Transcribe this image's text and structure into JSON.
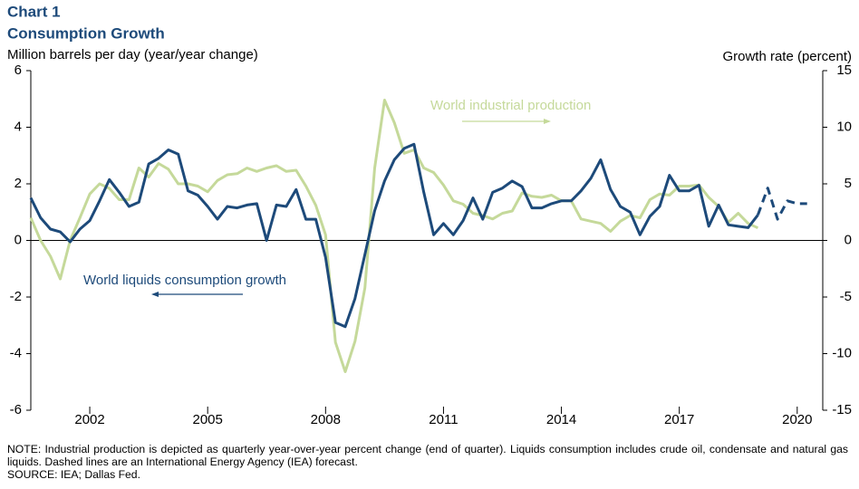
{
  "chart_data": {
    "type": "line",
    "title": "Chart 1",
    "subtitle": "Consumption Growth",
    "y_label": "Million barrels per day (year/year change)",
    "y2_label": "Growth rate (percent)",
    "note": "NOTE: Industrial production is depicted as quarterly year-over-year percent change (end of quarter). Liquids consumption includes crude oil, condensate and natural gas liquids. Dashed lines are an International Energy Agency (IEA) forecast.",
    "source": "SOURCE: IEA; Dallas Fed.",
    "x": [
      2000.5,
      2000.75,
      2001,
      2001.25,
      2001.5,
      2001.75,
      2002,
      2002.25,
      2002.5,
      2002.75,
      2003,
      2003.25,
      2003.5,
      2003.75,
      2004,
      2004.25,
      2004.5,
      2004.75,
      2005,
      2005.25,
      2005.5,
      2005.75,
      2006,
      2006.25,
      2006.5,
      2006.75,
      2007,
      2007.25,
      2007.5,
      2007.75,
      2008,
      2008.25,
      2008.5,
      2008.75,
      2009,
      2009.25,
      2009.5,
      2009.75,
      2010,
      2010.25,
      2010.5,
      2010.75,
      2011,
      2011.25,
      2011.5,
      2011.75,
      2012,
      2012.25,
      2012.5,
      2012.75,
      2013,
      2013.25,
      2013.5,
      2013.75,
      2014,
      2014.25,
      2014.5,
      2014.75,
      2015,
      2015.25,
      2015.5,
      2015.75,
      2016,
      2016.25,
      2016.5,
      2016.75,
      2017,
      2017.25,
      2017.5,
      2017.75,
      2018,
      2018.25,
      2018.5,
      2018.75,
      2019,
      2019.25,
      2019.5,
      2019.75,
      2020,
      2020.25,
      2020.5
    ],
    "series": [
      {
        "name": "World liquids consumption growth",
        "color": "#1d4a7a",
        "forecast_from": 2019,
        "values": [
          1.5,
          0.8,
          0.4,
          0.3,
          -0.05,
          0.4,
          0.7,
          1.4,
          2.15,
          1.7,
          1.2,
          1.35,
          2.7,
          2.9,
          3.2,
          3.05,
          1.75,
          1.6,
          1.2,
          0.75,
          1.2,
          1.15,
          1.25,
          1.3,
          0,
          1.25,
          1.2,
          1.8,
          0.75,
          0.75,
          -0.6,
          -2.9,
          -3.05,
          -2.05,
          -0.5,
          1.05,
          2.1,
          2.85,
          3.25,
          3.4,
          1.7,
          0.2,
          0.6,
          0.2,
          0.7,
          1.5,
          0.75,
          1.7,
          1.85,
          2.1,
          1.9,
          1.15,
          1.15,
          1.3,
          1.4,
          1.4,
          1.75,
          2.2,
          2.85,
          1.8,
          1.2,
          1.0,
          0.2,
          0.85,
          1.2,
          2.3,
          1.75,
          1.75,
          1.95,
          0.5,
          1.25,
          0.55,
          0.5,
          0.45,
          0.9,
          1.85,
          0.75,
          1.4,
          1.3,
          1.3,
          null
        ]
      },
      {
        "name": "World industrial production",
        "color": "#c5d99a",
        "axis": "y2",
        "values": [
          2.0,
          0,
          -1.4,
          -3.4,
          0,
          2.0,
          4.1,
          5.0,
          4.6,
          3.6,
          3.6,
          6.4,
          5.6,
          6.8,
          6.3,
          5.0,
          5.0,
          4.8,
          4.3,
          5.3,
          5.8,
          5.9,
          6.4,
          6.1,
          6.4,
          6.6,
          6.1,
          6.2,
          4.8,
          3.1,
          0.5,
          -9.0,
          -11.6,
          -8.9,
          -4.2,
          6.4,
          12.4,
          10.4,
          7.7,
          8.0,
          6.4,
          6.0,
          4.9,
          3.5,
          3.2,
          2.4,
          2.2,
          1.9,
          2.4,
          2.6,
          4.2,
          3.9,
          3.8,
          4.0,
          3.5,
          3.5,
          1.9,
          1.7,
          1.5,
          0.8,
          1.7,
          2.2,
          2.0,
          3.6,
          4.1,
          4.0,
          4.8,
          4.8,
          4.9,
          3.8,
          3.0,
          1.6,
          2.4,
          1.5,
          1.1,
          null,
          null,
          null,
          null,
          null,
          null
        ]
      }
    ],
    "xlim": [
      2000.5,
      2020.65
    ],
    "xticks": [
      2002,
      2005,
      2008,
      2011,
      2014,
      2017,
      2020
    ],
    "ylim": [
      -6,
      6
    ],
    "yticks": [
      6,
      4,
      2,
      0,
      -2,
      -4,
      -6
    ],
    "y2lim": [
      -15,
      15
    ],
    "y2ticks": [
      15,
      10,
      5,
      0,
      -5,
      -10,
      -15
    ]
  }
}
